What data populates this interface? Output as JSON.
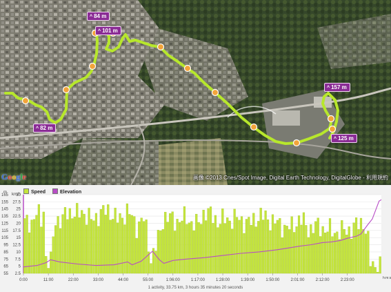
{
  "map": {
    "attribution": "画像 ©2013 Cnes/Spot Image, Digital Earth Technology, DigitalGlobe - 利用規約",
    "logo": "Google",
    "elevation_tags": [
      {
        "label": "84 m"
      },
      {
        "label": "101 m"
      },
      {
        "label": "82 m"
      },
      {
        "label": "157 m"
      },
      {
        "label": "125 m"
      }
    ],
    "colors": {
      "track": "#b7e72c",
      "tag": "#8a2c95",
      "marker": "#f2a43a"
    }
  },
  "chart": {
    "legend": [
      {
        "label": "Speed",
        "color": "#c4e53c"
      },
      {
        "label": "Elevation",
        "color": "#b84cc6"
      }
    ],
    "left_unit": "m",
    "right_unit": "km/h",
    "time_unit": "h:m:s",
    "footer": "1 activity, 33.75 km, 3 hours 35 minutes 20 seconds"
  },
  "chart_data": {
    "type": "bar",
    "y_left": {
      "label": "m",
      "ticks": [
        55,
        65,
        75,
        85,
        95,
        105,
        115,
        125,
        135,
        145,
        155,
        165
      ],
      "range": [
        55,
        165
      ]
    },
    "y_right": {
      "label": "km/h",
      "ticks": [
        "2.5",
        "5",
        "7.5",
        "10",
        "12.5",
        "15",
        "17.5",
        "20",
        "22.5",
        "25",
        "27.5",
        "30"
      ],
      "range": [
        0,
        30
      ]
    },
    "x_ticks": [
      "0:00",
      "11:00",
      "22:00",
      "33:00",
      "44:00",
      "55:00",
      "1:06:00",
      "1:17:00",
      "1:28:00",
      "1:39:00",
      "1:50:00",
      "2:01:00",
      "2:12:00",
      "2:23:00"
    ],
    "x_range_minutes": [
      0,
      158
    ],
    "speed_kmh_profile": [
      [
        0,
        19
      ],
      [
        4,
        20
      ],
      [
        6,
        23
      ],
      [
        8,
        20
      ],
      [
        9,
        25
      ],
      [
        10,
        6
      ],
      [
        12,
        3
      ],
      [
        14,
        21
      ],
      [
        17,
        20
      ],
      [
        20,
        24
      ],
      [
        24,
        22
      ],
      [
        26,
        24
      ],
      [
        30,
        20
      ],
      [
        34,
        23
      ],
      [
        38,
        24
      ],
      [
        42,
        20
      ],
      [
        46,
        24
      ],
      [
        50,
        18
      ],
      [
        53,
        21
      ],
      [
        55,
        14
      ],
      [
        56,
        5
      ],
      [
        58,
        9
      ],
      [
        60,
        14
      ],
      [
        62,
        22
      ],
      [
        67,
        20
      ],
      [
        72,
        21
      ],
      [
        77,
        18
      ],
      [
        80,
        24
      ],
      [
        86,
        20
      ],
      [
        94,
        21
      ],
      [
        100,
        19
      ],
      [
        104,
        22
      ],
      [
        108,
        21
      ],
      [
        112,
        19
      ],
      [
        118,
        17
      ],
      [
        122,
        21
      ],
      [
        126,
        17
      ],
      [
        130,
        18
      ],
      [
        136,
        16
      ],
      [
        141,
        16
      ],
      [
        145,
        17
      ],
      [
        150,
        20
      ],
      [
        152,
        14
      ],
      [
        153,
        4
      ],
      [
        155,
        3
      ],
      [
        158,
        3
      ]
    ],
    "elevation_m_profile": [
      [
        0,
        64
      ],
      [
        3,
        65
      ],
      [
        6,
        66
      ],
      [
        10,
        70
      ],
      [
        12,
        74
      ],
      [
        16,
        71
      ],
      [
        24,
        68
      ],
      [
        32,
        66
      ],
      [
        40,
        67
      ],
      [
        46,
        71
      ],
      [
        48,
        67
      ],
      [
        52,
        72
      ],
      [
        57,
        86
      ],
      [
        60,
        74
      ],
      [
        62,
        69
      ],
      [
        66,
        73
      ],
      [
        72,
        75
      ],
      [
        80,
        77
      ],
      [
        88,
        80
      ],
      [
        96,
        83
      ],
      [
        104,
        85
      ],
      [
        112,
        88
      ],
      [
        118,
        91
      ],
      [
        122,
        93
      ],
      [
        127,
        95
      ],
      [
        132,
        98
      ],
      [
        136,
        99
      ],
      [
        140,
        101
      ],
      [
        143,
        104
      ],
      [
        147,
        107
      ],
      [
        149,
        110
      ],
      [
        152,
        123
      ],
      [
        154,
        131
      ],
      [
        157,
        156
      ],
      [
        158,
        158
      ]
    ]
  }
}
